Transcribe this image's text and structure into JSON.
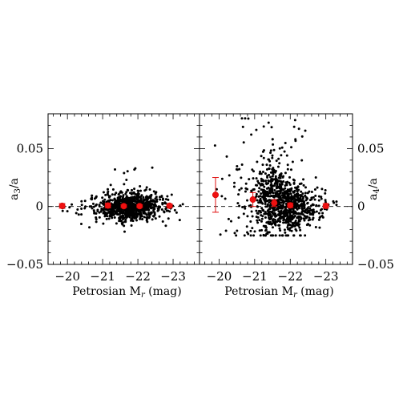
{
  "chart_data": [
    {
      "type": "scatter",
      "xlabel": "Petrosian M",
      "xlabel_sub": "r",
      "xlabel_unit": "(mag)",
      "ylabel": "a",
      "ylabel_sub": "3",
      "ylabel_tail": "/a",
      "xlim": [
        -19.45,
        -23.75
      ],
      "ylim": [
        -0.05,
        0.08
      ],
      "x_ticks": [
        -20,
        -21,
        -22,
        -23
      ],
      "x_tick_labels": [
        "−20",
        "−21",
        "−22",
        "−23"
      ],
      "y_ticks": [
        -0.05,
        0,
        0.05
      ],
      "y_tick_labels": [
        "−0.05",
        "0",
        "0.05"
      ],
      "ylabel_side": "left",
      "zero_line": true,
      "scatter_summary": {
        "x_range": [
          -19.8,
          -23.4
        ],
        "y_spread": 0.006,
        "outlier_max": 0.03
      },
      "binned_means": [
        {
          "x": -19.85,
          "y": 0.0005,
          "err": 0.002
        },
        {
          "x": -21.15,
          "y": 0.0008,
          "err": 0.002
        },
        {
          "x": -21.6,
          "y": 0.0003,
          "err": 0.0012
        },
        {
          "x": -22.05,
          "y": 0.0003,
          "err": 0.0012
        },
        {
          "x": -22.9,
          "y": 0.0006,
          "err": 0.0015
        }
      ]
    },
    {
      "type": "scatter",
      "xlabel": "Petrosian M",
      "xlabel_sub": "r",
      "xlabel_unit": "(mag)",
      "ylabel": "a",
      "ylabel_sub": "4",
      "ylabel_tail": "/a",
      "xlim": [
        -19.45,
        -23.75
      ],
      "ylim": [
        -0.05,
        0.08
      ],
      "x_ticks": [
        -20,
        -21,
        -22,
        -23
      ],
      "x_tick_labels": [
        "−20",
        "−21",
        "−22",
        "−23"
      ],
      "y_ticks": [
        -0.05,
        0,
        0.05
      ],
      "y_tick_labels": [
        "−0.05",
        "0",
        "0.05"
      ],
      "ylabel_side": "right",
      "zero_line": true,
      "scatter_summary": {
        "x_range": [
          -19.8,
          -23.3
        ],
        "y_spread": 0.01,
        "outlier_max": 0.075
      },
      "binned_means": [
        {
          "x": -19.9,
          "y": 0.01,
          "err": 0.015
        },
        {
          "x": -20.95,
          "y": 0.006,
          "err": 0.006
        },
        {
          "x": -21.55,
          "y": 0.003,
          "err": 0.003
        },
        {
          "x": -22.0,
          "y": 0.001,
          "err": 0.002
        },
        {
          "x": -23.0,
          "y": 0.0005,
          "err": 0.002
        }
      ]
    }
  ]
}
